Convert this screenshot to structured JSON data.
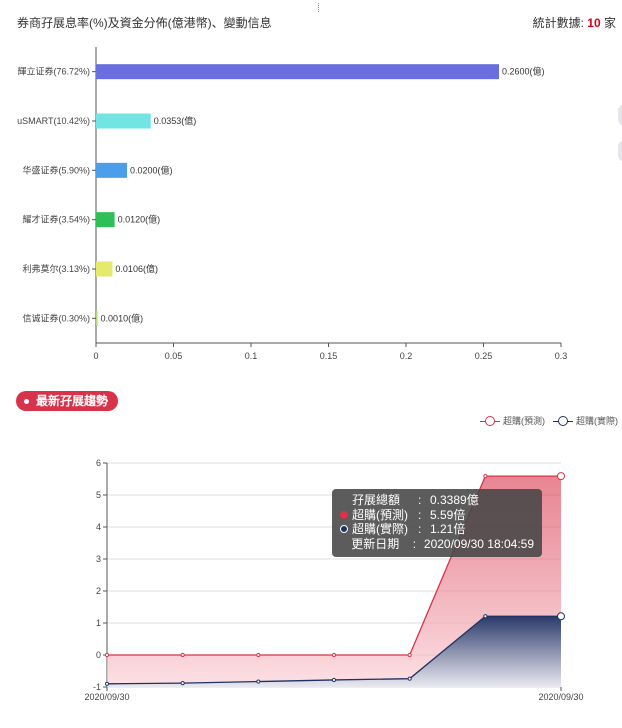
{
  "header": {
    "title": "券商孖展息率(%)及資金分佈(億港幣)、變動信息",
    "count_label": "統計數據:",
    "count_value": "10",
    "count_unit": "家"
  },
  "section_pill": "最新孖展趨勢",
  "tooltip": {
    "rows": [
      {
        "label": "孖展總額",
        "value": "0.3389億",
        "color": ""
      },
      {
        "label": "超購(預測)",
        "value": "5.59倍",
        "color": "#d8334a"
      },
      {
        "label": "超購(實際)",
        "value": "1.21倍",
        "color": "#1f3264"
      },
      {
        "label": "更新日期",
        "value": "2020/09/30 18:04:59",
        "color": ""
      }
    ],
    "sep": ":"
  },
  "chart_data": [
    {
      "type": "bar",
      "orientation": "horizontal",
      "categories": [
        "輝立证券(76.72%)",
        "uSMART(10.42%)",
        "华盛证券(5.90%)",
        "耀才证券(3.54%)",
        "利弗莫尔(3.13%)",
        "信诚证券(0.30%)"
      ],
      "values": [
        0.26,
        0.0353,
        0.02,
        0.012,
        0.0106,
        0.001
      ],
      "value_labels": [
        "0.2600(億)",
        "0.0353(億)",
        "0.0200(億)",
        "0.0120(億)",
        "0.0106(億)",
        "0.0010(億)"
      ],
      "colors": [
        "#6a6fe0",
        "#73e4e4",
        "#4a9eea",
        "#2fbf58",
        "#e6ea6b",
        "#a8dd7a"
      ],
      "xlim": [
        0,
        0.3
      ],
      "xticks": [
        "0",
        "0.05",
        "0.1",
        "0.15",
        "0.2",
        "0.25",
        "0.3"
      ],
      "grid": false
    },
    {
      "type": "area",
      "x_labels": [
        "2020/09/30",
        "2020/09/30"
      ],
      "ylim": [
        -1,
        6
      ],
      "yticks": [
        "-1",
        "0",
        "1",
        "2",
        "3",
        "4",
        "5",
        "6"
      ],
      "grid": true,
      "legend_position": "top-right",
      "series": [
        {
          "name": "超購(預測)",
          "color": "#d8334a",
          "values": [
            0,
            0,
            0,
            0,
            0,
            5.59,
            5.59
          ]
        },
        {
          "name": "超購(實際)",
          "color": "#1f3264",
          "values": [
            -0.9,
            -0.88,
            -0.83,
            -0.78,
            -0.74,
            1.21,
            1.21
          ]
        }
      ]
    }
  ]
}
